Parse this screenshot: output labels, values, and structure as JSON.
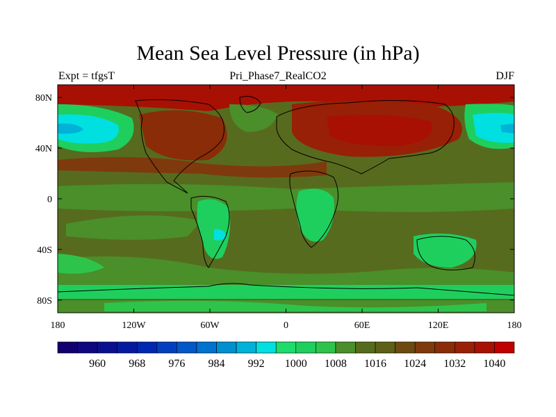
{
  "header": {
    "title": "Mean Sea Level Pressure (in hPa)",
    "subtitle": "Pri_Phase7_RealCO2",
    "left_string": "Expt = tfgsT",
    "right_string": "DJF"
  },
  "axes": {
    "lon_ticks": [
      "180",
      "120W",
      "60W",
      "0",
      "60E",
      "120E",
      "180"
    ],
    "lat_ticks": [
      "80N",
      "40N",
      "0",
      "40S",
      "80S"
    ],
    "lon_values": [
      -180,
      -120,
      -60,
      0,
      60,
      120,
      180
    ],
    "lat_values": [
      80,
      40,
      0,
      -40,
      -80
    ],
    "lat_range": [
      -90,
      90
    ],
    "lon_range": [
      -180,
      180
    ]
  },
  "colorbar": {
    "labels": [
      "960",
      "968",
      "976",
      "984",
      "992",
      "1000",
      "1008",
      "1016",
      "1024",
      "1032",
      "1040"
    ],
    "label_values": [
      960,
      968,
      976,
      984,
      992,
      1000,
      1008,
      1016,
      1024,
      1032,
      1040
    ],
    "levels": [
      956,
      960,
      964,
      968,
      972,
      976,
      980,
      984,
      988,
      992,
      996,
      1000,
      1004,
      1008,
      1012,
      1016,
      1020,
      1024,
      1028,
      1032,
      1036,
      1040,
      1044
    ],
    "colors": [
      "#12006e",
      "#0e077f",
      "#0a0f8f",
      "#0519a0",
      "#0027b2",
      "#003fbf",
      "#0058c9",
      "#0072cf",
      "#008fcf",
      "#00b2d8",
      "#00e0e0",
      "#1ddc6c",
      "#1fcf5e",
      "#2ec44c",
      "#4a8f2a",
      "#576b1e",
      "#5e6018",
      "#6e4a10",
      "#7e3a0c",
      "#8a2c08",
      "#982006",
      "#a81004",
      "#c00000"
    ]
  }
}
